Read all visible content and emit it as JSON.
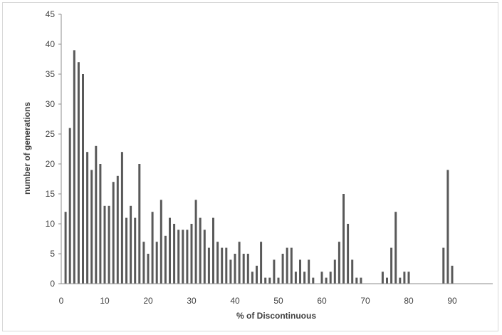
{
  "chart_data": {
    "type": "bar",
    "title": "",
    "xlabel": "% of Discontinuous",
    "ylabel": "number of generations",
    "xlim": [
      0,
      100
    ],
    "ylim": [
      0,
      45
    ],
    "x_ticks": [
      0,
      10,
      20,
      30,
      40,
      50,
      60,
      70,
      80,
      90
    ],
    "y_ticks": [
      0,
      5,
      10,
      15,
      20,
      25,
      30,
      35,
      40,
      45
    ],
    "grid": false,
    "legend": "none",
    "colors": {
      "bar": "#595959",
      "axis": "#8c8c8c",
      "text": "#404040"
    },
    "x": [
      1,
      2,
      3,
      4,
      5,
      6,
      7,
      8,
      9,
      10,
      11,
      12,
      13,
      14,
      15,
      16,
      17,
      18,
      19,
      20,
      21,
      22,
      23,
      24,
      25,
      26,
      27,
      28,
      29,
      30,
      31,
      32,
      33,
      34,
      35,
      36,
      37,
      38,
      39,
      40,
      41,
      42,
      43,
      44,
      45,
      46,
      47,
      48,
      49,
      50,
      51,
      52,
      53,
      54,
      55,
      56,
      57,
      58,
      59,
      60,
      61,
      62,
      63,
      64,
      65,
      66,
      67,
      68,
      69,
      70,
      71,
      72,
      73,
      74,
      75,
      76,
      77,
      78,
      79,
      80,
      81,
      82,
      83,
      84,
      85,
      86,
      87,
      88,
      89,
      90
    ],
    "values": [
      12,
      26,
      39,
      37,
      35,
      22,
      19,
      23,
      20,
      13,
      13,
      17,
      18,
      22,
      11,
      13,
      11,
      20,
      7,
      5,
      12,
      7,
      14,
      8,
      11,
      10,
      9,
      9,
      9,
      10,
      14,
      11,
      9,
      6,
      11,
      7,
      6,
      6,
      4,
      5,
      7,
      5,
      5,
      2,
      3,
      7,
      1,
      1,
      4,
      1,
      5,
      6,
      6,
      2,
      4,
      2,
      4,
      1,
      0,
      2,
      1,
      2,
      4,
      7,
      15,
      10,
      4,
      1,
      1,
      0,
      0,
      0,
      0,
      2,
      1,
      6,
      12,
      1,
      2,
      2,
      0,
      0,
      0,
      0,
      0,
      0,
      0,
      6,
      19,
      3
    ]
  }
}
